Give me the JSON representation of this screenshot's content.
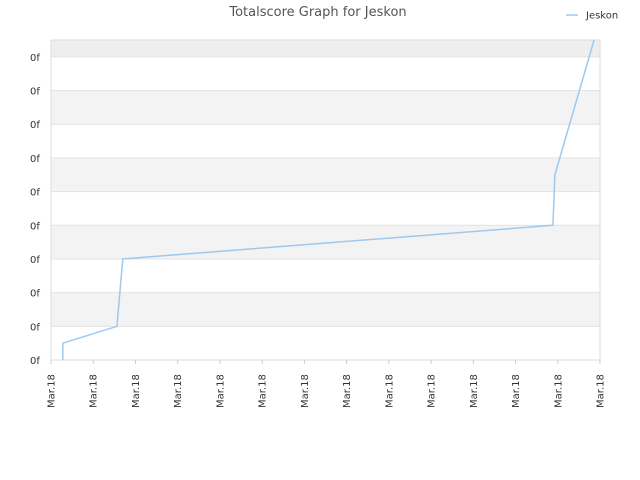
{
  "chart_data": {
    "type": "line",
    "title": "Totalscore Graph for Jeskon",
    "xlabel": "",
    "ylabel": "",
    "x_tick_labels": [
      "Mar.18",
      "Mar.18",
      "Mar.18",
      "Mar.18",
      "Mar.18",
      "Mar.18",
      "Mar.18",
      "Mar.18",
      "Mar.18",
      "Mar.18",
      "Mar.18",
      "Mar.18",
      "Mar.18",
      "Mar.18"
    ],
    "y_tick_labels": [
      "0f",
      "0f",
      "0f",
      "0f",
      "0f",
      "0f",
      "0f",
      "0f",
      "0f",
      "0f"
    ],
    "ylim": [
      0,
      9.5
    ],
    "grid": true,
    "legend_position": "top-right",
    "series": [
      {
        "name": "Jeskon",
        "color": "#9ec9ef",
        "points": [
          {
            "x": 0.3,
            "y": 0.0
          },
          {
            "x": 0.3,
            "y": 0.5
          },
          {
            "x": 1.68,
            "y": 1.0
          },
          {
            "x": 1.83,
            "y": 3.0
          },
          {
            "x": 12.8,
            "y": 4.0
          },
          {
            "x": 12.85,
            "y": 5.5
          },
          {
            "x": 13.85,
            "y": 9.5
          }
        ]
      }
    ],
    "xlim": [
      0,
      14
    ]
  }
}
